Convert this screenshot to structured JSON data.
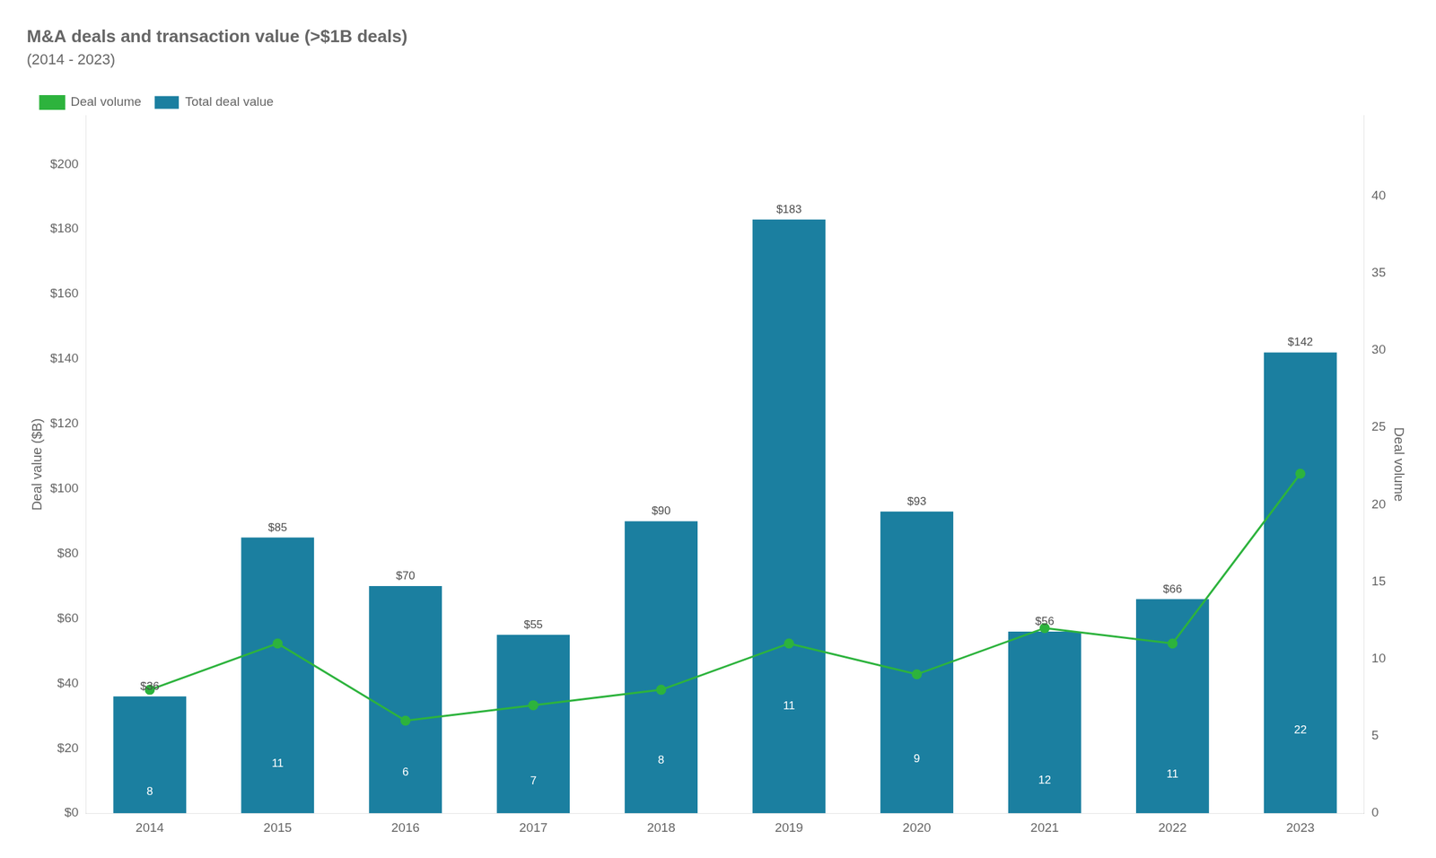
{
  "chart_data": {
    "type": "bar",
    "title": "M&A deals and transaction value (>$1B deals)",
    "subtitle": "(2014 - 2023)",
    "categories": [
      "2014",
      "2015",
      "2016",
      "2017",
      "2018",
      "2019",
      "2020",
      "2021",
      "2022",
      "2023"
    ],
    "series": [
      {
        "name": "Total deal value",
        "type": "bar",
        "color": "#1b7fa0",
        "values": [
          36,
          85,
          70,
          55,
          90,
          183,
          93,
          56,
          66,
          142
        ],
        "value_labels": [
          "$36",
          "$85",
          "$70",
          "$55",
          "$90",
          "$183",
          "$93",
          "$56",
          "$66",
          "$142"
        ]
      },
      {
        "name": "Deal volume",
        "type": "line",
        "color": "#2db33d",
        "axis": "y2",
        "marker": "circle",
        "values": [
          8,
          11,
          6,
          7,
          8,
          11,
          9,
          12,
          11,
          22
        ]
      }
    ],
    "ylabel": "Deal value ($B)",
    "y2label": "Deal volume",
    "ylim": [
      0,
      215
    ],
    "yticks": [
      {
        "value": 0,
        "label": "$0"
      },
      {
        "value": 20,
        "label": "$20"
      },
      {
        "value": 40,
        "label": "$40"
      },
      {
        "value": 60,
        "label": "$60"
      },
      {
        "value": 80,
        "label": "$80"
      },
      {
        "value": 100,
        "label": "$100"
      },
      {
        "value": 120,
        "label": "$120"
      },
      {
        "value": 140,
        "label": "$140"
      },
      {
        "value": 160,
        "label": "$160"
      },
      {
        "value": 180,
        "label": "$180"
      },
      {
        "value": 200,
        "label": "$200"
      }
    ],
    "y2lim": [
      0,
      45.2
    ],
    "y2ticks": [
      0,
      5,
      10,
      15,
      20,
      25,
      30,
      35,
      40
    ],
    "grid": false,
    "legend": "upper left",
    "data_labels": true
  }
}
